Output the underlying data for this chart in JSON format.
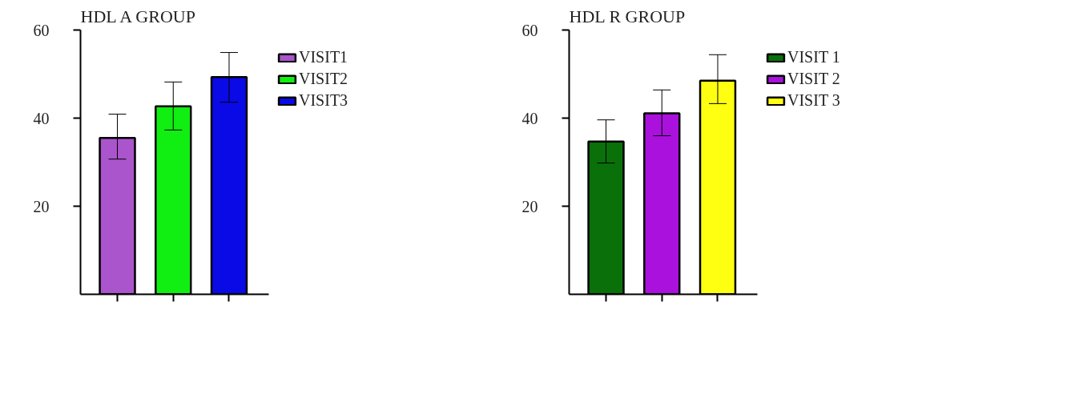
{
  "chart_data": [
    {
      "type": "bar",
      "title": "HDL A GROUP",
      "categories": [
        null
      ],
      "ylim": [
        0,
        60
      ],
      "yticks": [
        20,
        40,
        60
      ],
      "tick_labels": "y",
      "grid": false,
      "legend": "right",
      "series": [
        {
          "name": "VISIT1",
          "color": "#aa55cc",
          "values": [
            35.5
          ],
          "errors": [
            [
              30.7,
              40.9
            ]
          ]
        },
        {
          "name": "VISIT2",
          "color": "#11ee11",
          "values": [
            42.7
          ],
          "errors": [
            [
              37.3,
              48.2
            ]
          ]
        },
        {
          "name": "VISIT3",
          "color": "#0a0ae6",
          "values": [
            49.3
          ],
          "errors": [
            [
              43.6,
              54.9
            ]
          ]
        }
      ]
    },
    {
      "type": "bar",
      "title": "HDL R GROUP",
      "categories": [
        null
      ],
      "ylim": [
        0,
        60
      ],
      "yticks": [
        20,
        40,
        60
      ],
      "tick_labels": "y",
      "grid": false,
      "legend": "right",
      "series": [
        {
          "name": "VISIT 1",
          "color": "#0a700a",
          "values": [
            34.7
          ],
          "errors": [
            [
              29.8,
              39.6
            ]
          ]
        },
        {
          "name": "VISIT 2",
          "color": "#aa11dd",
          "values": [
            41.1
          ],
          "errors": [
            [
              36.0,
              46.4
            ]
          ]
        },
        {
          "name": "VISIT 3",
          "color": "#ffff11",
          "values": [
            48.5
          ],
          "errors": [
            [
              43.3,
              54.4
            ]
          ]
        }
      ]
    }
  ]
}
